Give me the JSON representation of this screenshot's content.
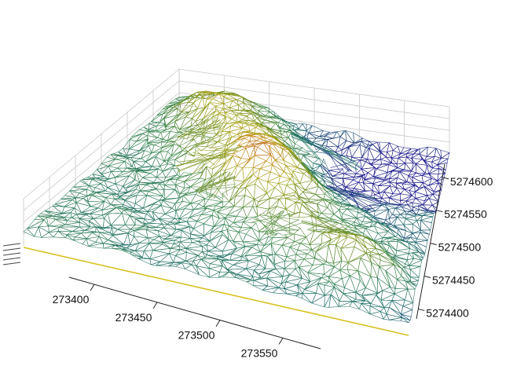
{
  "chart_data": {
    "type": "surface",
    "subtype": "3d-triangulated-wireframe",
    "title": "",
    "xlabel": "",
    "ylabel": "",
    "zlabel": "",
    "grid": true,
    "legend": "none",
    "x_ticks": [
      "273400",
      "273450",
      "273500",
      "273550"
    ],
    "y_ticks": [
      "5274400",
      "5274450",
      "5274500",
      "5274550",
      "5274600"
    ],
    "xlim": [
      273380,
      273580
    ],
    "ylim": [
      5274385,
      5274620
    ],
    "zlim": [
      0,
      1
    ],
    "colormap": [
      "#1c1a8c",
      "#1f6f6a",
      "#3f8a52",
      "#6f8f25",
      "#a9a81e",
      "#c78a1c",
      "#b04418",
      "#8e1212"
    ],
    "hills": [
      {
        "x": 273475,
        "y": 5274515,
        "z": 0.55,
        "r": 24
      },
      {
        "x": 273448,
        "y": 5274565,
        "z": 0.35,
        "r": 28
      },
      {
        "x": 273415,
        "y": 5274600,
        "z": 0.32,
        "r": 18
      },
      {
        "x": 273545,
        "y": 5274440,
        "z": 0.3,
        "r": 20
      },
      {
        "x": 273505,
        "y": 5274470,
        "z": 0.22,
        "r": 26
      }
    ],
    "pits": [
      {
        "x": 273560,
        "y": 5274585,
        "z": -0.3,
        "r": 26
      },
      {
        "x": 273520,
        "y": 5274550,
        "z": -0.15,
        "r": 22
      },
      {
        "x": 273490,
        "y": 5274600,
        "z": -0.12,
        "r": 30
      }
    ],
    "gaps": [
      {
        "x": 273498,
        "y": 5274585,
        "rx": 24,
        "ry": 12
      },
      {
        "x": 273527,
        "y": 5274540,
        "rx": 18,
        "ry": 11
      },
      {
        "x": 273422,
        "y": 5274555,
        "rx": 14,
        "ry": 12
      },
      {
        "x": 273442,
        "y": 5274515,
        "rx": 20,
        "ry": 13
      },
      {
        "x": 273498,
        "y": 5274455,
        "rx": 14,
        "ry": 11
      },
      {
        "x": 273525,
        "y": 5274460,
        "rx": 14,
        "ry": 12
      },
      {
        "x": 273455,
        "y": 5274485,
        "rx": 12,
        "ry": 8
      }
    ]
  }
}
